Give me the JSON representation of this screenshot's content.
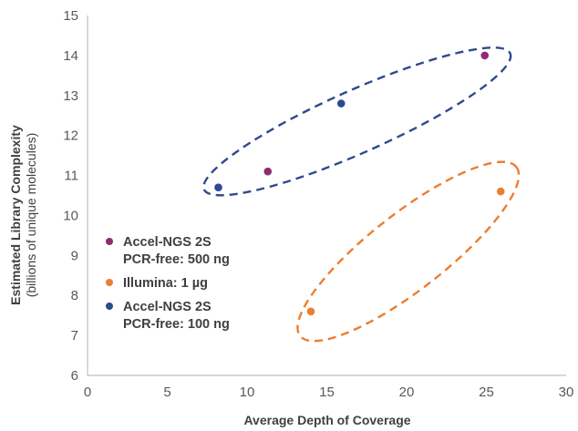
{
  "chart_data": {
    "type": "scatter",
    "xlabel": "Average Depth of Coverage",
    "ylabel": "Estimated Library Complexity",
    "ylabel_sub": "(billions of unique molecules)",
    "xlim": [
      0,
      30
    ],
    "ylim": [
      6,
      15
    ],
    "x_ticks": [
      0,
      5,
      10,
      15,
      20,
      25,
      30
    ],
    "y_ticks": [
      6,
      7,
      8,
      9,
      10,
      11,
      12,
      13,
      14,
      15
    ],
    "grid": false,
    "legend_position": "left",
    "series": [
      {
        "name_lines": [
          "Accel-NGS 2S",
          "PCR-free: 500 ng"
        ],
        "color": "#8e2c6e",
        "points": [
          {
            "x": 11.3,
            "y": 11.1
          },
          {
            "x": 24.9,
            "y": 14.0
          }
        ]
      },
      {
        "name_lines": [
          "Illumina: 1 µg"
        ],
        "color": "#ed7d31",
        "points": [
          {
            "x": 14.0,
            "y": 7.6
          },
          {
            "x": 25.9,
            "y": 10.6
          }
        ]
      },
      {
        "name_lines": [
          "Accel-NGS 2S",
          "PCR-free: 100 ng"
        ],
        "color": "#2e4a8e",
        "points": [
          {
            "x": 8.2,
            "y": 10.7
          },
          {
            "x": 15.9,
            "y": 12.8
          }
        ]
      }
    ],
    "annotations": [
      {
        "kind": "dashed-ellipse",
        "color": "#2e4a8e",
        "center": {
          "x": 16.9,
          "y": 12.35
        },
        "rx_data": 10.5,
        "ry_data": 0.78,
        "angle_deg": -24
      },
      {
        "kind": "dashed-ellipse",
        "color": "#ed7d31",
        "center": {
          "x": 20.1,
          "y": 9.1
        },
        "rx_data": 8.6,
        "ry_data": 0.95,
        "angle_deg": -38
      }
    ]
  }
}
